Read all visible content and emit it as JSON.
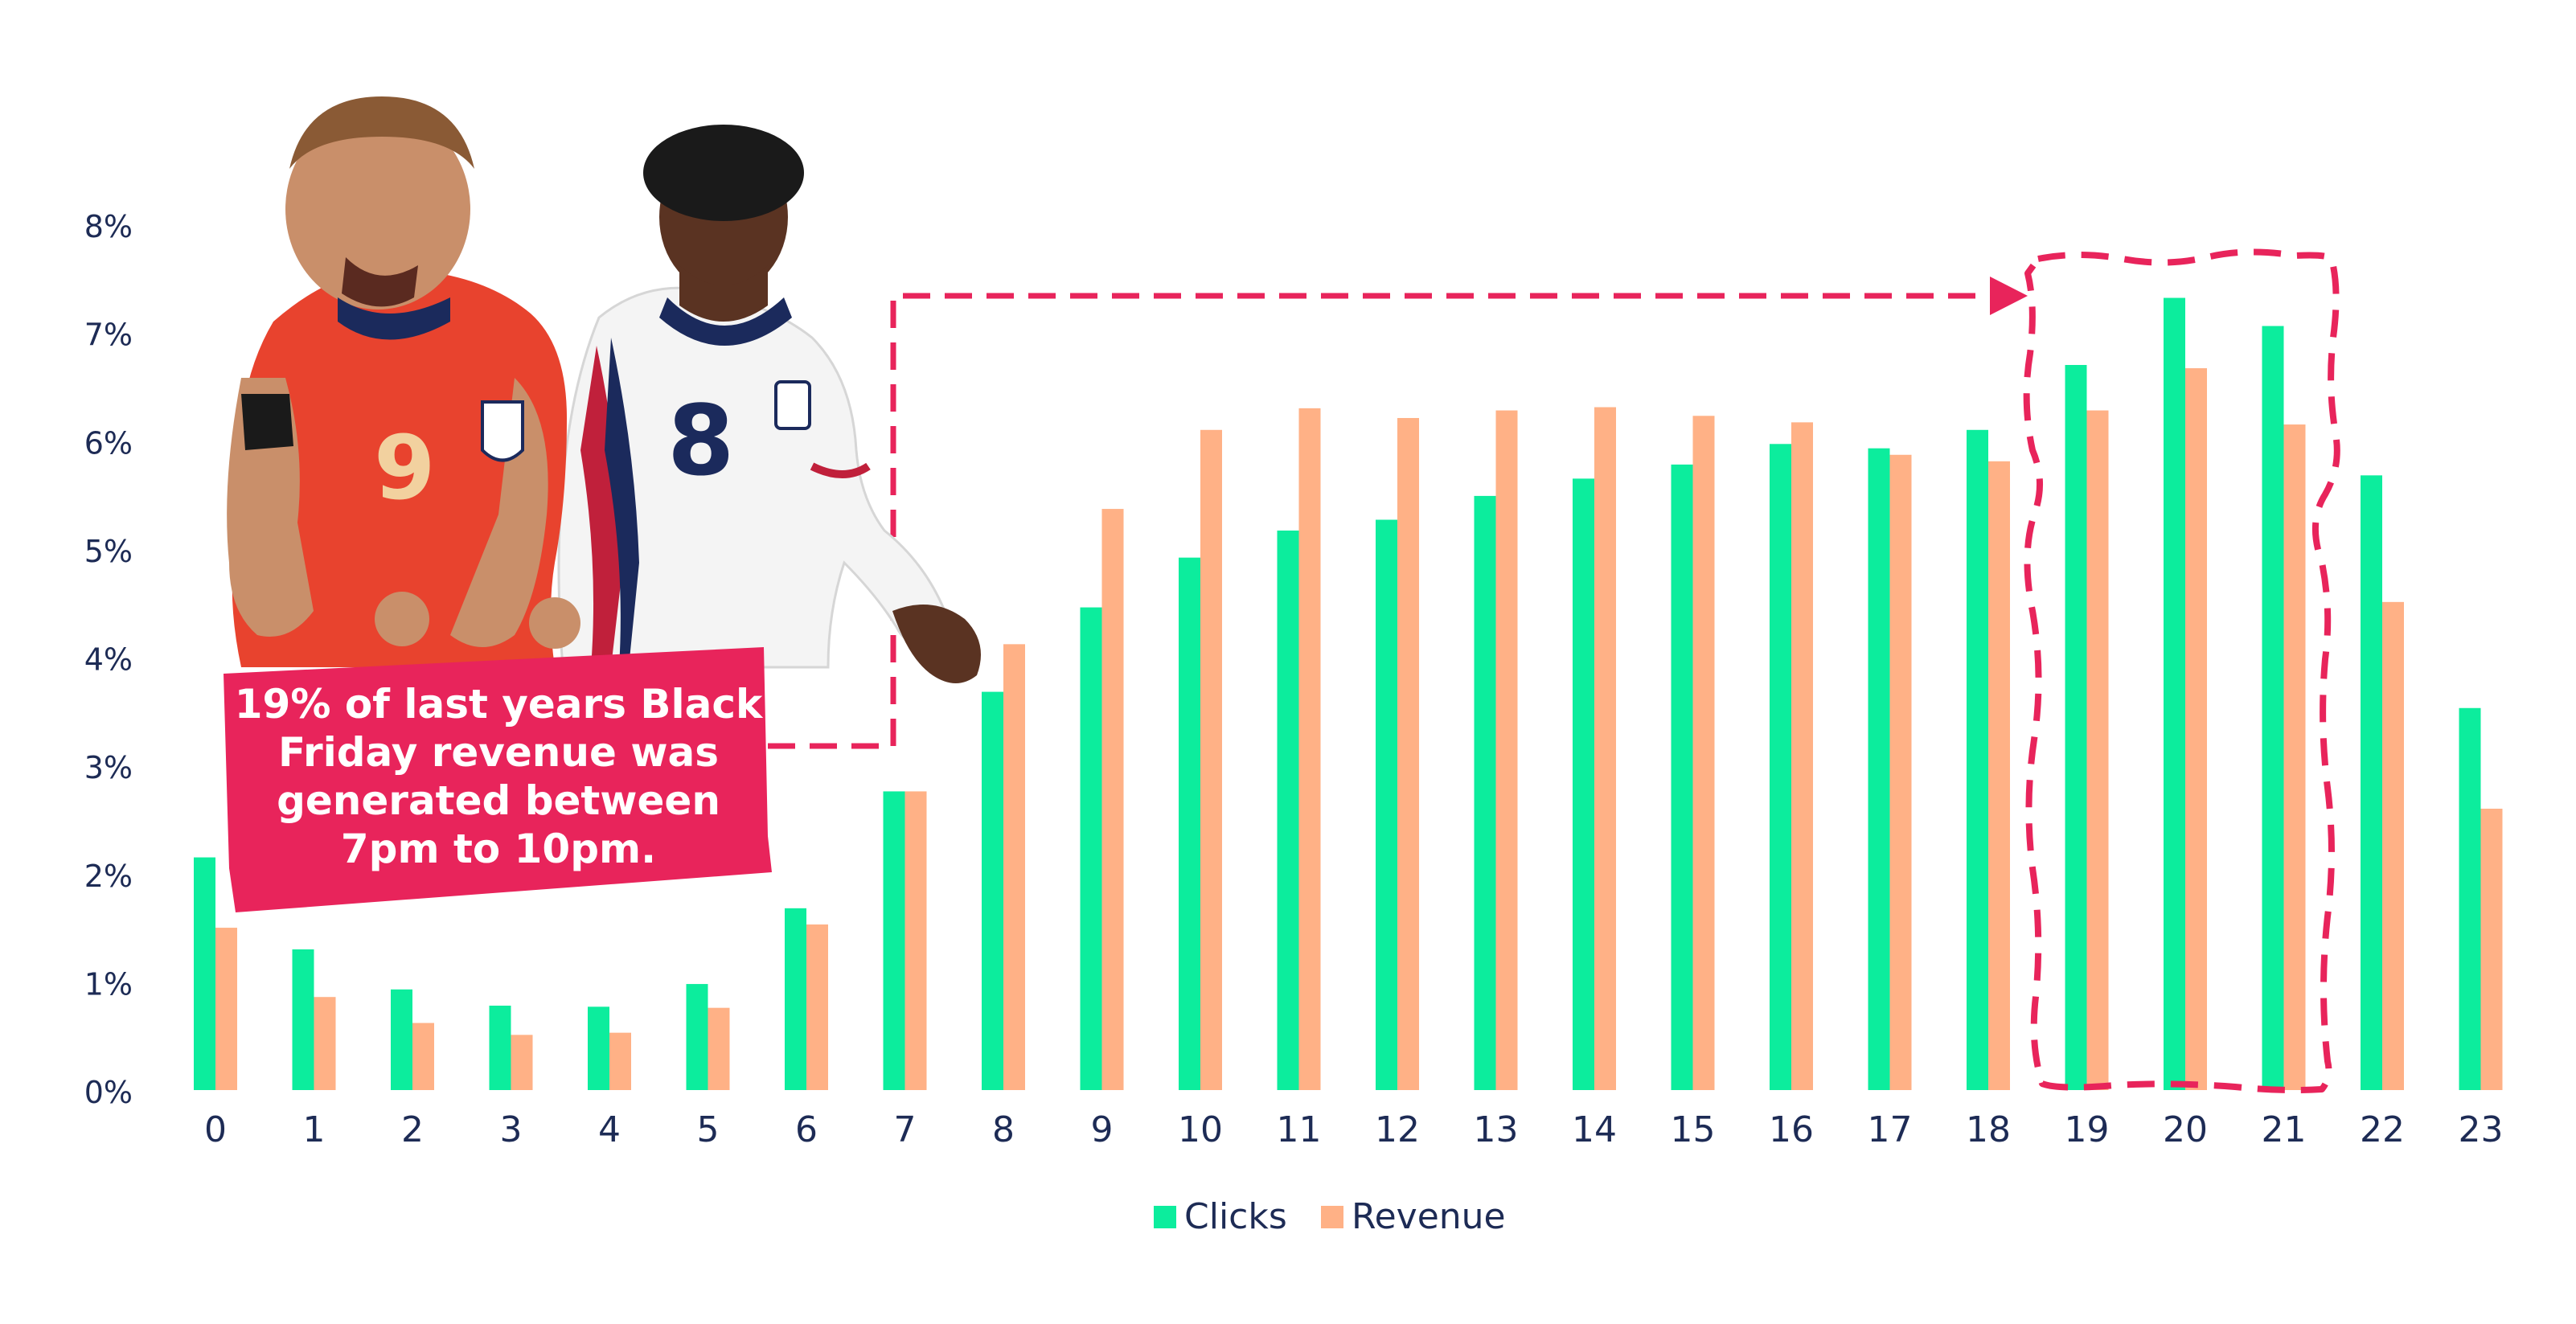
{
  "chart_data": {
    "type": "bar",
    "title": "",
    "xlabel": "",
    "ylabel": "",
    "ylim": [
      0,
      8
    ],
    "yticks": [
      "0%",
      "1%",
      "2%",
      "3%",
      "4%",
      "5%",
      "6%",
      "7%",
      "8%"
    ],
    "grid": false,
    "legend_position": "bottom-center",
    "categories": [
      "0",
      "1",
      "2",
      "3",
      "4",
      "5",
      "6",
      "7",
      "8",
      "9",
      "10",
      "11",
      "12",
      "13",
      "14",
      "15",
      "16",
      "17",
      "18",
      "19",
      "20",
      "21",
      "22",
      "23"
    ],
    "series": [
      {
        "name": "Clicks",
        "color": "#0ced9d",
        "values": [
          2.15,
          1.3,
          0.93,
          0.78,
          0.77,
          0.98,
          1.68,
          2.76,
          3.68,
          4.46,
          4.92,
          5.17,
          5.27,
          5.49,
          5.65,
          5.78,
          5.97,
          5.93,
          6.1,
          6.7,
          7.32,
          7.06,
          5.68,
          3.53
        ]
      },
      {
        "name": "Revenue",
        "color": "#ffb186",
        "values": [
          1.5,
          0.86,
          0.62,
          0.51,
          0.53,
          0.76,
          1.53,
          2.76,
          4.12,
          5.37,
          6.1,
          6.3,
          6.21,
          6.28,
          6.31,
          6.23,
          6.17,
          5.87,
          5.81,
          6.28,
          6.67,
          6.15,
          4.51,
          2.6
        ]
      }
    ],
    "annotations": {
      "callout_lines": [
        "19% of last years Black",
        "Friday revenue was",
        "generated between",
        "7pm to 10pm."
      ],
      "callout_color": "#e8245b",
      "highlight_range": [
        "19",
        "21"
      ]
    }
  },
  "images": {
    "players": "illustration-football-players"
  }
}
